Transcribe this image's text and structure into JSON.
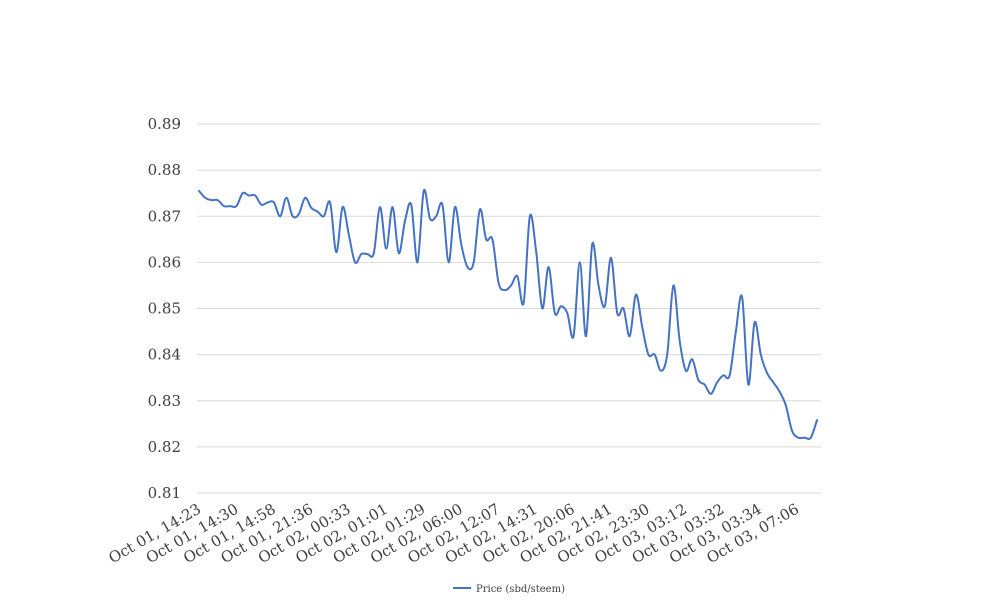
{
  "chart_data": {
    "type": "line",
    "title": "",
    "xlabel": "",
    "ylabel": "",
    "ylim": [
      0.81,
      0.89
    ],
    "yticks": [
      0.81,
      0.82,
      0.83,
      0.84,
      0.85,
      0.86,
      0.87,
      0.88,
      0.89
    ],
    "ytick_labels": [
      "0.81",
      "0.82",
      "0.83",
      "0.84",
      "0.85",
      "0.86",
      "0.87",
      "0.88",
      "0.89"
    ],
    "grid": true,
    "legend_position": "bottom-center",
    "xtick_labels": [
      "Oct 01, 14:23",
      "Oct 01, 14:30",
      "Oct 01, 14:58",
      "Oct 01, 21:36",
      "Oct 02, 00:33",
      "Oct 02, 01:01",
      "Oct 02, 01:29",
      "Oct 02, 06:00",
      "Oct 02, 12:07",
      "Oct 02, 14:31",
      "Oct 02, 20:06",
      "Oct 02, 21:41",
      "Oct 02, 23:30",
      "Oct 03, 03:12",
      "Oct 03, 03:32",
      "Oct 03, 03:34",
      "Oct 03, 07:06"
    ],
    "series": [
      {
        "name": "Price (sbd/steem)",
        "color": "#4472C4",
        "values": [
          0.8755,
          0.874,
          0.8735,
          0.8735,
          0.8722,
          0.8722,
          0.8722,
          0.875,
          0.8745,
          0.8745,
          0.8725,
          0.873,
          0.873,
          0.87,
          0.874,
          0.87,
          0.8705,
          0.874,
          0.8718,
          0.871,
          0.87,
          0.873,
          0.8622,
          0.872,
          0.866,
          0.86,
          0.8618,
          0.8618,
          0.862,
          0.872,
          0.863,
          0.872,
          0.862,
          0.869,
          0.8725,
          0.86,
          0.8755,
          0.8695,
          0.87,
          0.8725,
          0.86,
          0.872,
          0.864,
          0.859,
          0.86,
          0.8715,
          0.865,
          0.865,
          0.8555,
          0.854,
          0.855,
          0.857,
          0.8512,
          0.87,
          0.8625,
          0.85,
          0.859,
          0.849,
          0.8505,
          0.849,
          0.844,
          0.86,
          0.844,
          0.864,
          0.855,
          0.8505,
          0.861,
          0.849,
          0.85,
          0.844,
          0.853,
          0.846,
          0.84,
          0.84,
          0.8365,
          0.84,
          0.855,
          0.843,
          0.8365,
          0.839,
          0.8345,
          0.8335,
          0.8315,
          0.834,
          0.8355,
          0.8355,
          0.845,
          0.8525,
          0.8335,
          0.847,
          0.84,
          0.836,
          0.834,
          0.832,
          0.829,
          0.8235,
          0.822,
          0.822,
          0.822,
          0.8258
        ]
      }
    ]
  }
}
